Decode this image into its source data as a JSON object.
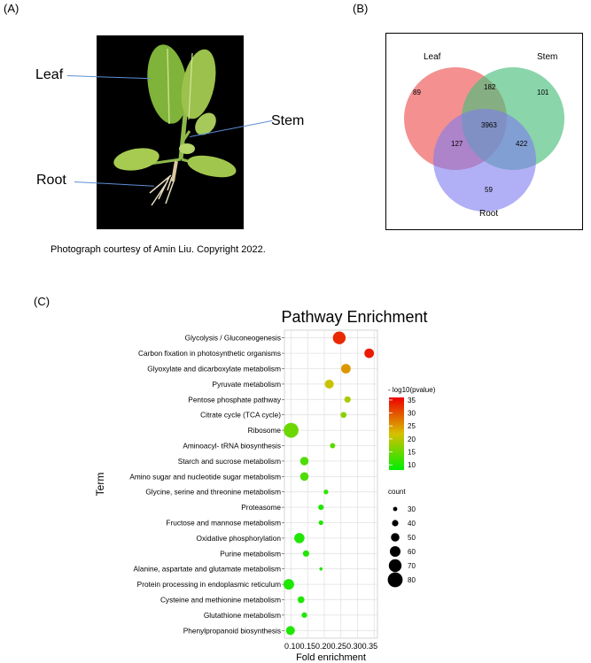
{
  "panels": {
    "a": "(A)",
    "b": "(B)",
    "c": "(C)"
  },
  "photo": {
    "labels": {
      "leaf": "Leaf",
      "stem": "Stem",
      "root": "Root"
    },
    "caption": "Photograph courtesy of Amin Liu. Copyright 2022."
  },
  "venn": {
    "sets": {
      "leaf": "Leaf",
      "stem": "Stem",
      "root": "Root"
    },
    "counts": {
      "leaf_only": "89",
      "stem_only": "101",
      "root_only": "59",
      "leaf_stem": "182",
      "leaf_root": "127",
      "stem_root": "422",
      "all": "3963"
    },
    "colors": {
      "leaf": "#f06b6b",
      "stem": "#4cbf7d",
      "root": "#7d7cf0"
    }
  },
  "chart_data": {
    "type": "scatter",
    "title": "Pathway Enrichment",
    "xlabel": "Fold enrichment",
    "ylabel": "Term",
    "xlim": [
      0.08,
      0.36
    ],
    "x_ticks": [
      "0.10",
      "0.15",
      "0.20",
      "0.25",
      "0.30",
      "0.35"
    ],
    "x_tick_values": [
      0.1,
      0.15,
      0.2,
      0.25,
      0.3,
      0.35
    ],
    "x_tick_text": "0.100.150.200.250.300.35",
    "terms": [
      {
        "term": "Glycolysis / Gluconeogenesis",
        "fold": 0.245,
        "count": 70,
        "neglog10p": 33
      },
      {
        "term": "Carbon fixation in photosynthetic organisms",
        "fold": 0.335,
        "count": 55,
        "neglog10p": 34
      },
      {
        "term": "Glyoxylate and dicarboxylate metabolism",
        "fold": 0.265,
        "count": 55,
        "neglog10p": 25
      },
      {
        "term": "Pyruvate metabolism",
        "fold": 0.215,
        "count": 52,
        "neglog10p": 21
      },
      {
        "term": "Pentose phosphate pathway",
        "fold": 0.27,
        "count": 40,
        "neglog10p": 19
      },
      {
        "term": "Citrate cycle (TCA cycle)",
        "fold": 0.258,
        "count": 38,
        "neglog10p": 17
      },
      {
        "term": "Ribosome",
        "fold": 0.1,
        "count": 80,
        "neglog10p": 15
      },
      {
        "term": "Aminoacyl- tRNA biosynthesis",
        "fold": 0.225,
        "count": 35,
        "neglog10p": 14
      },
      {
        "term": "Starch and sucrose metabolism",
        "fold": 0.14,
        "count": 50,
        "neglog10p": 13
      },
      {
        "term": "Amino sugar and nucleotide sugar metabolism",
        "fold": 0.14,
        "count": 50,
        "neglog10p": 13
      },
      {
        "term": "Glycine, serine and threonine metabolism",
        "fold": 0.205,
        "count": 32,
        "neglog10p": 11
      },
      {
        "term": "Proteasome",
        "fold": 0.19,
        "count": 36,
        "neglog10p": 10
      },
      {
        "term": "Fructose and mannose metabolism",
        "fold": 0.19,
        "count": 32,
        "neglog10p": 10
      },
      {
        "term": "Oxidative phosphorylation",
        "fold": 0.125,
        "count": 58,
        "neglog10p": 10
      },
      {
        "term": "Purine metabolism",
        "fold": 0.145,
        "count": 40,
        "neglog10p": 10
      },
      {
        "term": "Alanine, aspartate and glutamate metabolism",
        "fold": 0.19,
        "count": 25,
        "neglog10p": 10
      },
      {
        "term": "Protein processing in endoplasmic reticulum",
        "fold": 0.093,
        "count": 60,
        "neglog10p": 10
      },
      {
        "term": "Cysteine and methionine metabolism",
        "fold": 0.13,
        "count": 42,
        "neglog10p": 10
      },
      {
        "term": "Glutathione metabolism",
        "fold": 0.14,
        "count": 36,
        "neglog10p": 10
      },
      {
        "term": "Phenylpropanoid biosynthesis",
        "fold": 0.098,
        "count": 52,
        "neglog10p": 10
      }
    ],
    "color_legend": {
      "title": "- log10(pvalue)",
      "ticks": [
        "35",
        "30",
        "25",
        "20",
        "15",
        "10"
      ],
      "tick_values": [
        35,
        30,
        25,
        20,
        15,
        10
      ],
      "range": [
        8,
        36
      ],
      "low_color": "#00ee00",
      "high_color": "#ee0000"
    },
    "size_legend": {
      "title": "count",
      "labels": [
        "30",
        "40",
        "50",
        "60",
        "70",
        "80"
      ],
      "values": [
        30,
        40,
        50,
        60,
        70,
        80
      ]
    },
    "grid": true,
    "legend_position": "right"
  }
}
